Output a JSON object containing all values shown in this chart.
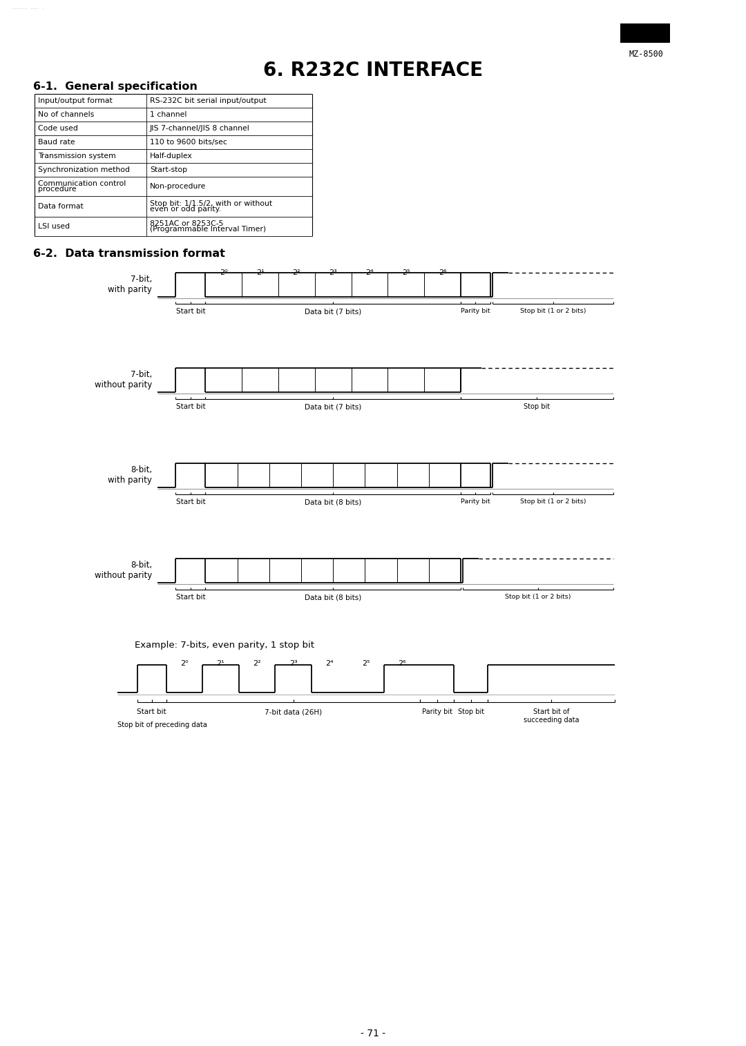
{
  "title": "6. R232C INTERFACE",
  "bg_color": "#ffffff",
  "text_color": "#000000",
  "header_label": "MZ-8500",
  "section1_title": "6-1.  General specification",
  "section2_title": "6-2.  Data transmission format",
  "table_data": [
    [
      "Input/output format",
      "RS-232C bit serial input/output"
    ],
    [
      "No of channels",
      "1 channel"
    ],
    [
      "Code used",
      "JIS 7-channel/JIS 8 channel"
    ],
    [
      "Baud rate",
      "110 to 9600 bits/sec"
    ],
    [
      "Transmission system",
      "Half-duplex"
    ],
    [
      "Synchronization method",
      "Start-stop"
    ],
    [
      "Communication control\nprocedure",
      "Non-procedure"
    ],
    [
      "Data format",
      "Stop bit: 1/1.5/2, with or without\neven or odd parity."
    ],
    [
      "LSI used",
      "8251AC or 8253C-5\n(Programmable Interval Timer)"
    ]
  ],
  "diagrams": [
    {
      "label": "7-bit,\nwith parity",
      "n_data_bits": 7,
      "has_parity": true,
      "stop_label": "Stop bit (1 or 2 bits)",
      "parity_label": "Parity bit",
      "data_label": "Data bit (7 bits)",
      "show_bit_labels": true,
      "stop_high": false
    },
    {
      "label": "7-bit,\nwithout parity",
      "n_data_bits": 7,
      "has_parity": false,
      "stop_label": "Stop bit",
      "parity_label": "",
      "data_label": "Data bit (7 bits)",
      "show_bit_labels": false,
      "stop_high": true
    },
    {
      "label": "8-bit,\nwith parity",
      "n_data_bits": 8,
      "has_parity": true,
      "stop_label": "Stop bit (1 or 2 bits)",
      "parity_label": "Parity bit",
      "data_label": "Data bit (8 bits)",
      "show_bit_labels": false,
      "stop_high": false
    },
    {
      "label": "8-bit,\nwithout parity",
      "n_data_bits": 8,
      "has_parity": false,
      "stop_label": "Stop bit (1 or 2 bits)",
      "parity_label": "",
      "data_label": "Data bit (8 bits)",
      "show_bit_labels": false,
      "stop_high": false
    }
  ],
  "example_title": "Example: 7-bits, even parity, 1 stop bit",
  "example_pattern": [
    0,
    1,
    0,
    1,
    0,
    0,
    1
  ],
  "example_bit_labels": [
    "2⁰",
    "2¹",
    "2²",
    "2³",
    "2⁴",
    "2⁵",
    "2⁶"
  ],
  "page_number": "- 71 -"
}
